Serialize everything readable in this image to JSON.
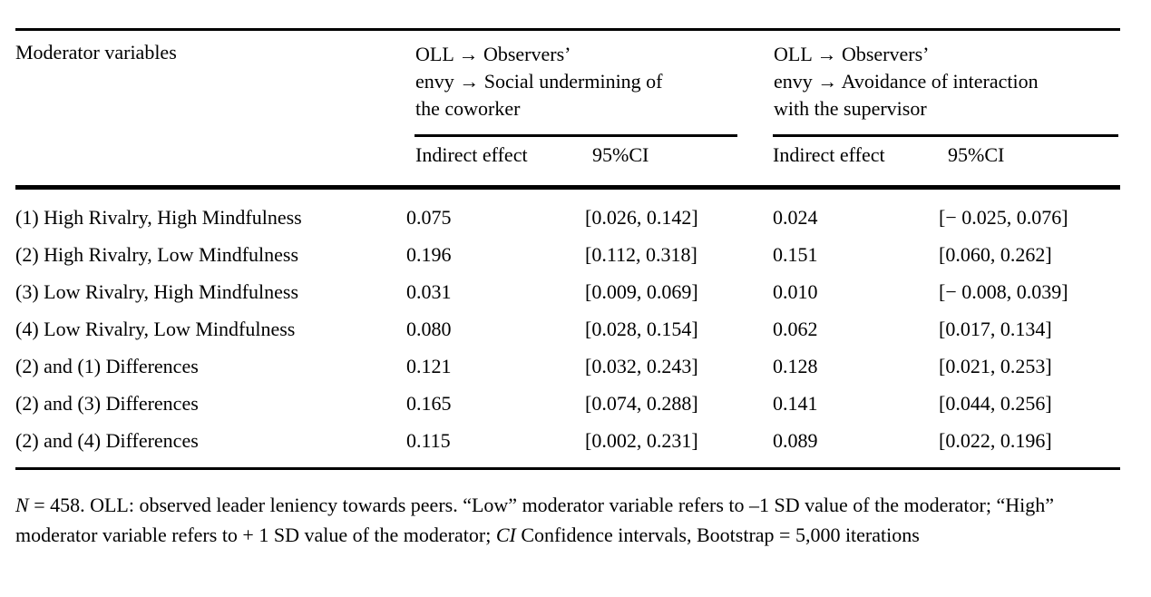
{
  "table": {
    "stub_header": "Moderator variables",
    "group1": {
      "title": "OLL → Observers’\nenvy → Social undermining of\nthe coworker",
      "col_effect": "Indirect effect",
      "col_ci": "95%CI"
    },
    "group2": {
      "title": "OLL → Observers’\nenvy → Avoidance of interaction\nwith the supervisor",
      "col_effect": "Indirect effect",
      "col_ci": "95%CI"
    },
    "rows": [
      {
        "label": "(1) High Rivalry, High Mindfulness",
        "effect1": "0.075",
        "ci1": "[0.026, 0.142]",
        "effect2": "0.024",
        "ci2": "[− 0.025, 0.076]"
      },
      {
        "label": "(2) High Rivalry, Low Mindfulness",
        "effect1": "0.196",
        "ci1": "[0.112, 0.318]",
        "effect2": "0.151",
        "ci2": "[0.060, 0.262]"
      },
      {
        "label": "(3) Low Rivalry, High Mindfulness",
        "effect1": "0.031",
        "ci1": "[0.009, 0.069]",
        "effect2": "0.010",
        "ci2": "[− 0.008, 0.039]"
      },
      {
        "label": "(4) Low Rivalry, Low Mindfulness",
        "effect1": "0.080",
        "ci1": "[0.028, 0.154]",
        "effect2": "0.062",
        "ci2": "[0.017, 0.134]"
      },
      {
        "label": "(2) and (1) Differences",
        "effect1": "0.121",
        "ci1": "[0.032, 0.243]",
        "effect2": "0.128",
        "ci2": "[0.021, 0.253]"
      },
      {
        "label": "(2) and (3) Differences",
        "effect1": "0.165",
        "ci1": "[0.074, 0.288]",
        "effect2": "0.141",
        "ci2": "[0.044, 0.256]"
      },
      {
        "label": "(2) and (4) Differences",
        "effect1": "0.115",
        "ci1": "[0.002, 0.231]",
        "effect2": "0.089",
        "ci2": "[0.022, 0.196]"
      }
    ]
  },
  "footnote": {
    "n_italic": "N",
    "body1": " = 458. OLL: observed leader leniency towards peers. “Low” moderator variable refers to –1 SD value of the moderator; “High” moderator variable refers to + 1 SD value of the moderator; ",
    "ci_italic": "CI",
    "body2": " Confidence intervals, Bootstrap = 5,000 iterations"
  },
  "colors": {
    "background": "#ffffff",
    "text": "#000000",
    "rule": "#000000"
  }
}
